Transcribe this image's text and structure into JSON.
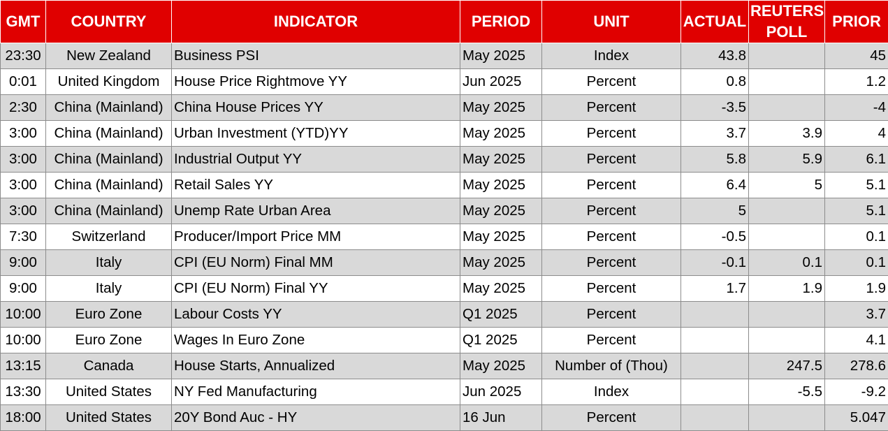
{
  "headers": {
    "gmt": "GMT",
    "country": "COUNTRY",
    "indicator": "INDICATOR",
    "period": "PERIOD",
    "unit": "UNIT",
    "actual": "ACTUAL",
    "poll_line1": "REUTERS",
    "poll_line2": "POLL",
    "prior": "PRIOR"
  },
  "rows": [
    {
      "gmt": "23:30",
      "country": "New Zealand",
      "indicator": "Business PSI",
      "period": "May 2025",
      "unit": "Index",
      "actual": "43.8",
      "poll": "",
      "prior": "45"
    },
    {
      "gmt": "0:01",
      "country": "United Kingdom",
      "indicator": "House Price Rightmove YY",
      "period": "Jun 2025",
      "unit": "Percent",
      "actual": "0.8",
      "poll": "",
      "prior": "1.2"
    },
    {
      "gmt": "2:30",
      "country": "China (Mainland)",
      "indicator": "China House Prices YY",
      "period": "May 2025",
      "unit": "Percent",
      "actual": "-3.5",
      "poll": "",
      "prior": "-4"
    },
    {
      "gmt": "3:00",
      "country": "China (Mainland)",
      "indicator": "Urban Investment (YTD)YY",
      "period": "May 2025",
      "unit": "Percent",
      "actual": "3.7",
      "poll": "3.9",
      "prior": "4"
    },
    {
      "gmt": "3:00",
      "country": "China (Mainland)",
      "indicator": "Industrial Output YY",
      "period": "May 2025",
      "unit": "Percent",
      "actual": "5.8",
      "poll": "5.9",
      "prior": "6.1"
    },
    {
      "gmt": "3:00",
      "country": "China (Mainland)",
      "indicator": "Retail Sales YY",
      "period": "May 2025",
      "unit": "Percent",
      "actual": "6.4",
      "poll": "5",
      "prior": "5.1"
    },
    {
      "gmt": "3:00",
      "country": "China (Mainland)",
      "indicator": "Unemp Rate Urban Area",
      "period": "May 2025",
      "unit": "Percent",
      "actual": "5",
      "poll": "",
      "prior": "5.1"
    },
    {
      "gmt": "7:30",
      "country": "Switzerland",
      "indicator": "Producer/Import Price MM",
      "period": "May 2025",
      "unit": "Percent",
      "actual": "-0.5",
      "poll": "",
      "prior": "0.1"
    },
    {
      "gmt": "9:00",
      "country": "Italy",
      "indicator": "CPI (EU Norm) Final MM",
      "period": "May 2025",
      "unit": "Percent",
      "actual": "-0.1",
      "poll": "0.1",
      "prior": "0.1"
    },
    {
      "gmt": "9:00",
      "country": "Italy",
      "indicator": "CPI (EU Norm) Final YY",
      "period": "May 2025",
      "unit": "Percent",
      "actual": "1.7",
      "poll": "1.9",
      "prior": "1.9"
    },
    {
      "gmt": "10:00",
      "country": "Euro Zone",
      "indicator": "Labour Costs YY",
      "period": "Q1 2025",
      "unit": "Percent",
      "actual": "",
      "poll": "",
      "prior": "3.7"
    },
    {
      "gmt": "10:00",
      "country": "Euro Zone",
      "indicator": "Wages In Euro Zone",
      "period": "Q1 2025",
      "unit": "Percent",
      "actual": "",
      "poll": "",
      "prior": "4.1"
    },
    {
      "gmt": "13:15",
      "country": "Canada",
      "indicator": "House Starts, Annualized",
      "period": "May 2025",
      "unit": "Number of (Thou)",
      "actual": "",
      "poll": "247.5",
      "prior": "278.6"
    },
    {
      "gmt": "13:30",
      "country": "United States",
      "indicator": "NY Fed Manufacturing",
      "period": "Jun 2025",
      "unit": "Index",
      "actual": "",
      "poll": "-5.5",
      "prior": "-9.2"
    },
    {
      "gmt": "18:00",
      "country": "United States",
      "indicator": "20Y Bond Auc - HY",
      "period": "16 Jun",
      "unit": "Percent",
      "actual": "",
      "poll": "",
      "prior": "5.047"
    }
  ],
  "colors": {
    "header_bg": "#e00000",
    "header_text": "#ffffff",
    "row_alt_bg": "#d9d9d9",
    "row_bg": "#ffffff",
    "grid": "#8c8c8c"
  }
}
